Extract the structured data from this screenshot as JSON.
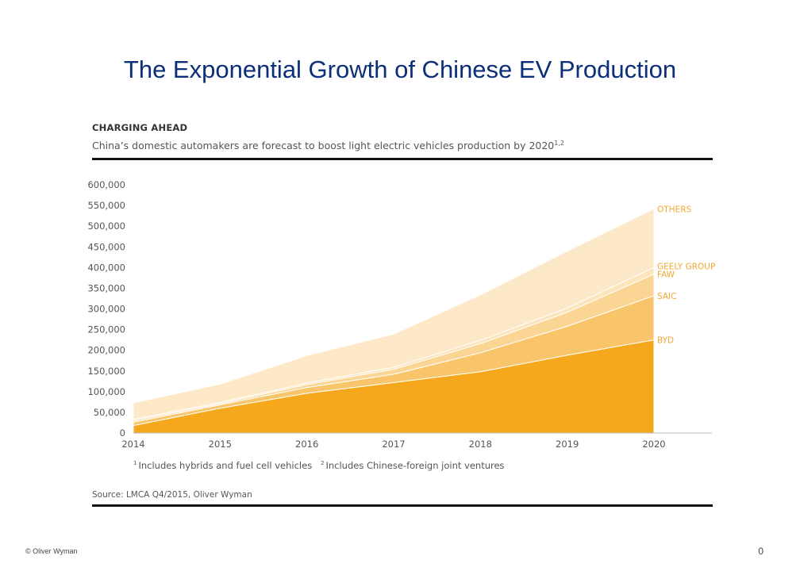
{
  "slide": {
    "title": "The Exponential Growth of Chinese EV Production",
    "copyright": "© Oliver Wyman",
    "page_number": "0"
  },
  "figure": {
    "eyebrow": "CHARGING AHEAD",
    "subtitle": "China’s domestic automakers are forecast to boost light electric vehicles production by 2020",
    "subtitle_sup": "1,2",
    "footnote_1_marker": "1",
    "footnote_1": "Includes hybrids and fuel cell vehicles",
    "footnote_2_marker": "2",
    "footnote_2": "Includes Chinese-foreign joint ventures",
    "source": "Source: LMCA Q4/2015, Oliver Wyman"
  },
  "chart_data": {
    "type": "area",
    "stacked": true,
    "x": [
      "2014",
      "2015",
      "2016",
      "2017",
      "2018",
      "2019",
      "2020"
    ],
    "ylim": [
      0,
      600000
    ],
    "yticks": [
      0,
      50000,
      100000,
      150000,
      200000,
      250000,
      300000,
      350000,
      400000,
      450000,
      500000,
      550000,
      600000
    ],
    "ytick_labels": [
      "0",
      "50,000",
      "100,000",
      "150,000",
      "200,000",
      "250,000",
      "300,000",
      "350,000",
      "400,000",
      "450,000",
      "500,000",
      "550,000",
      "600,000"
    ],
    "legend_placement": "right, inline at series ends",
    "series": [
      {
        "name": "BYD",
        "color": "#f5a81c",
        "values": [
          18000,
          60000,
          96000,
          122000,
          148000,
          188000,
          225000
        ]
      },
      {
        "name": "SAIC",
        "color": "#f9c56a",
        "values": [
          8000,
          8000,
          14000,
          20000,
          46000,
          70000,
          107000
        ]
      },
      {
        "name": "FAW",
        "color": "#fbd594",
        "values": [
          4000,
          3000,
          7000,
          12000,
          22000,
          34000,
          52000
        ]
      },
      {
        "name": "GEELY GROUP",
        "color": "#fce4bb",
        "values": [
          3000,
          3000,
          4000,
          5000,
          8000,
          10000,
          16000
        ]
      },
      {
        "name": "OTHERS",
        "color": "#fde8c8",
        "values": [
          40000,
          44000,
          66000,
          80000,
          110000,
          138000,
          142000
        ]
      }
    ]
  }
}
